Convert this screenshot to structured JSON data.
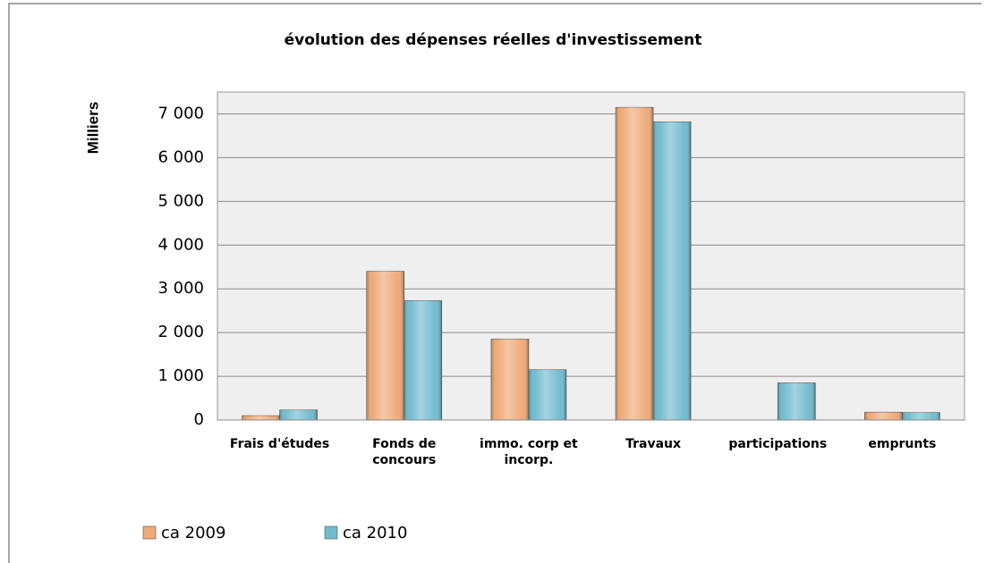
{
  "chart_data": {
    "type": "bar",
    "title": "évolution des dépenses  réelles d'investissement",
    "y_label": "Milliers",
    "categories": [
      "Frais d'études",
      "Fonds de concours",
      "immo. corp et incorp.",
      "Travaux",
      "participations",
      "emprunts"
    ],
    "series": [
      {
        "name": "ca 2009",
        "color": "#eeaa78",
        "values": [
          100,
          3400,
          1850,
          7150,
          null,
          180
        ]
      },
      {
        "name": "ca 2010",
        "color": "#72bccf",
        "values": [
          230,
          2730,
          1150,
          6820,
          850,
          170
        ]
      }
    ],
    "ylim": [
      0,
      7500
    ],
    "yticks": [
      0,
      {
        "value": 1000,
        "label": "1 000"
      },
      {
        "value": 2000,
        "label": "2 000"
      },
      {
        "value": 3000,
        "label": "3 000"
      },
      {
        "value": 4000,
        "label": "4 000"
      },
      {
        "value": 5000,
        "label": "5 000"
      },
      {
        "value": 6000,
        "label": "6 000"
      },
      {
        "value": 7000,
        "label": "7 000"
      }
    ],
    "grid": true,
    "legend": "bottom-left"
  }
}
